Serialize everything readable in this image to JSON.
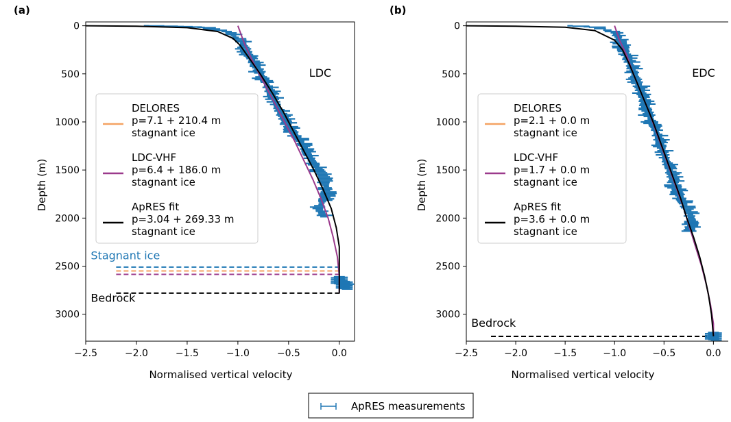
{
  "chart_data": [
    {
      "panel_label": "(a)",
      "site_label": "LDC",
      "type": "line",
      "xlabel": "Normalised vertical velocity",
      "ylabel": "Depth (m)",
      "xlim": [
        -2.5,
        0.15
      ],
      "ylim": [
        3280,
        -40
      ],
      "y_inverted": true,
      "xticks": [
        "−2.5",
        "−2.0",
        "−1.5",
        "−1.0",
        "−0.5",
        "0.0"
      ],
      "xtick_values": [
        -2.5,
        -2.0,
        -1.5,
        -1.0,
        -0.5,
        0.0
      ],
      "yticks": [
        "0",
        "500",
        "1000",
        "1500",
        "2000",
        "2500",
        "3000"
      ],
      "ytick_values": [
        0,
        500,
        1000,
        1500,
        2000,
        2500,
        3000
      ],
      "grid": false,
      "legend_placement": "center-left",
      "series": [
        {
          "name": "DELORES",
          "legend_lines": [
            "DELORES",
            "p=7.1 + 210.4 m",
            "stagnant ice"
          ],
          "color": "#f4a261",
          "points": []
        },
        {
          "name": "LDC-VHF",
          "legend_lines": [
            "LDC-VHF",
            "p=6.4 + 186.0 m",
            "stagnant ice"
          ],
          "color": "#9b3a8c",
          "points": [
            [
              -1.0,
              0
            ],
            [
              -0.93,
              200
            ],
            [
              -0.84,
              400
            ],
            [
              -0.74,
              600
            ],
            [
              -0.64,
              800
            ],
            [
              -0.54,
              1000
            ],
            [
              -0.44,
              1200
            ],
            [
              -0.35,
              1400
            ],
            [
              -0.26,
              1600
            ],
            [
              -0.18,
              1800
            ],
            [
              -0.11,
              2000
            ],
            [
              -0.06,
              2200
            ],
            [
              -0.02,
              2400
            ],
            [
              0.0,
              2600
            ],
            [
              0.0,
              2780
            ]
          ]
        },
        {
          "name": "ApRES fit",
          "legend_lines": [
            "ApRES fit",
            "p=3.04 + 269.33 m",
            "stagnant ice"
          ],
          "color": "#000000",
          "points": [
            [
              -2.5,
              0
            ],
            [
              -2.0,
              5
            ],
            [
              -1.5,
              20
            ],
            [
              -1.2,
              60
            ],
            [
              -1.05,
              130
            ],
            [
              -0.98,
              200
            ],
            [
              -0.88,
              350
            ],
            [
              -0.78,
              500
            ],
            [
              -0.66,
              700
            ],
            [
              -0.55,
              900
            ],
            [
              -0.45,
              1100
            ],
            [
              -0.35,
              1300
            ],
            [
              -0.25,
              1500
            ],
            [
              -0.16,
              1700
            ],
            [
              -0.08,
              1900
            ],
            [
              -0.03,
              2100
            ],
            [
              0.0,
              2300
            ],
            [
              0.0,
              2780
            ]
          ]
        }
      ],
      "measurements": {
        "name": "ApRES measurements",
        "color": "#1f77b4",
        "points": [
          [
            -1.9,
            0
          ],
          [
            -1.7,
            5
          ],
          [
            -1.5,
            10
          ],
          [
            -1.3,
            20
          ],
          [
            -1.1,
            60
          ],
          [
            -0.95,
            180
          ],
          [
            -0.9,
            300
          ],
          [
            -0.8,
            450
          ],
          [
            -0.72,
            600
          ],
          [
            -0.65,
            750
          ],
          [
            -0.58,
            900
          ],
          [
            -0.5,
            1050
          ],
          [
            -0.38,
            1200
          ],
          [
            -0.3,
            1350
          ],
          [
            -0.2,
            1500
          ],
          [
            -0.15,
            1600
          ],
          [
            -0.12,
            1700
          ],
          [
            -0.15,
            1800
          ],
          [
            -0.2,
            1900
          ],
          [
            -0.15,
            2000
          ],
          [
            0.0,
            2650
          ],
          [
            0.05,
            2700
          ]
        ]
      },
      "annotations": [
        {
          "text": "Stagnant ice",
          "color": "#1f77b4",
          "x": -2.45,
          "y": 2430
        },
        {
          "text": "Bedrock",
          "color": "#000000",
          "x": -2.45,
          "y": 2870
        }
      ],
      "hlines": [
        {
          "y": 2510,
          "color": "#1f77b4",
          "x0": -2.2,
          "x1": 0.02
        },
        {
          "y": 2550,
          "color": "#f4a261",
          "x0": -2.2,
          "x1": 0.02
        },
        {
          "y": 2585,
          "color": "#9b3a8c",
          "x0": -2.2,
          "x1": 0.02
        },
        {
          "y": 2780,
          "color": "#000000",
          "x0": -2.2,
          "x1": 0.02
        }
      ]
    },
    {
      "panel_label": "(b)",
      "site_label": "EDC",
      "type": "line",
      "xlabel": "Normalised vertical velocity",
      "ylabel": "Depth (m)",
      "xlim": [
        -2.5,
        0.15
      ],
      "ylim": [
        3280,
        -40
      ],
      "y_inverted": true,
      "xticks": [
        "−2.5",
        "−2.0",
        "−1.5",
        "−1.0",
        "−0.5",
        "0.0"
      ],
      "xtick_values": [
        -2.5,
        -2.0,
        -1.5,
        -1.0,
        -0.5,
        0.0
      ],
      "yticks": [
        "0",
        "500",
        "1000",
        "1500",
        "2000",
        "2500",
        "3000"
      ],
      "ytick_values": [
        0,
        500,
        1000,
        1500,
        2000,
        2500,
        3000
      ],
      "grid": false,
      "legend_placement": "center-left",
      "series": [
        {
          "name": "DELORES",
          "legend_lines": [
            "DELORES",
            "p=2.1 + 0.0 m",
            "stagnant ice"
          ],
          "color": "#f4a261",
          "points": []
        },
        {
          "name": "LDC-VHF",
          "legend_lines": [
            "LDC-VHF",
            "p=1.7 + 0.0 m",
            "stagnant ice"
          ],
          "color": "#9b3a8c",
          "points": [
            [
              -1.0,
              0
            ],
            [
              -0.95,
              150
            ],
            [
              -0.88,
              300
            ],
            [
              -0.81,
              500
            ],
            [
              -0.73,
              700
            ],
            [
              -0.65,
              900
            ],
            [
              -0.58,
              1100
            ],
            [
              -0.51,
              1300
            ],
            [
              -0.44,
              1500
            ],
            [
              -0.37,
              1700
            ],
            [
              -0.3,
              1900
            ],
            [
              -0.24,
              2100
            ],
            [
              -0.18,
              2300
            ],
            [
              -0.12,
              2500
            ],
            [
              -0.07,
              2700
            ],
            [
              -0.03,
              2900
            ],
            [
              0.0,
              3100
            ],
            [
              0.0,
              3230
            ]
          ]
        },
        {
          "name": "ApRES fit",
          "legend_lines": [
            "ApRES fit",
            "p=3.6 + 0.0 m",
            "stagnant ice"
          ],
          "color": "#000000",
          "points": [
            [
              -2.5,
              0
            ],
            [
              -2.0,
              5
            ],
            [
              -1.5,
              15
            ],
            [
              -1.2,
              50
            ],
            [
              -1.0,
              150
            ],
            [
              -0.92,
              250
            ],
            [
              -0.85,
              400
            ],
            [
              -0.77,
              600
            ],
            [
              -0.69,
              800
            ],
            [
              -0.61,
              1000
            ],
            [
              -0.54,
              1200
            ],
            [
              -0.47,
              1400
            ],
            [
              -0.4,
              1600
            ],
            [
              -0.33,
              1800
            ],
            [
              -0.27,
              2000
            ],
            [
              -0.2,
              2200
            ],
            [
              -0.14,
              2400
            ],
            [
              -0.09,
              2600
            ],
            [
              -0.05,
              2800
            ],
            [
              -0.02,
              3000
            ],
            [
              0.0,
              3230
            ]
          ]
        }
      ],
      "measurements": {
        "name": "ApRES measurements",
        "color": "#1f77b4",
        "points": [
          [
            -1.45,
            0
          ],
          [
            -1.2,
            15
          ],
          [
            -1.0,
            60
          ],
          [
            -0.92,
            200
          ],
          [
            -0.86,
            350
          ],
          [
            -0.8,
            500
          ],
          [
            -0.73,
            700
          ],
          [
            -0.66,
            900
          ],
          [
            -0.58,
            1100
          ],
          [
            -0.51,
            1300
          ],
          [
            -0.44,
            1500
          ],
          [
            -0.37,
            1700
          ],
          [
            -0.3,
            1850
          ],
          [
            -0.24,
            1950
          ],
          [
            -0.2,
            2050
          ],
          [
            -0.28,
            2150
          ],
          [
            0.0,
            3230
          ]
        ]
      },
      "annotations": [
        {
          "text": "Bedrock",
          "color": "#000000",
          "x": -2.45,
          "y": 3130
        }
      ],
      "hlines": [
        {
          "y": 3230,
          "color": "#000000",
          "x0": -2.25,
          "x1": 0.05
        }
      ]
    }
  ],
  "shared_legend": {
    "label": "ApRES measurements",
    "color": "#1f77b4"
  }
}
